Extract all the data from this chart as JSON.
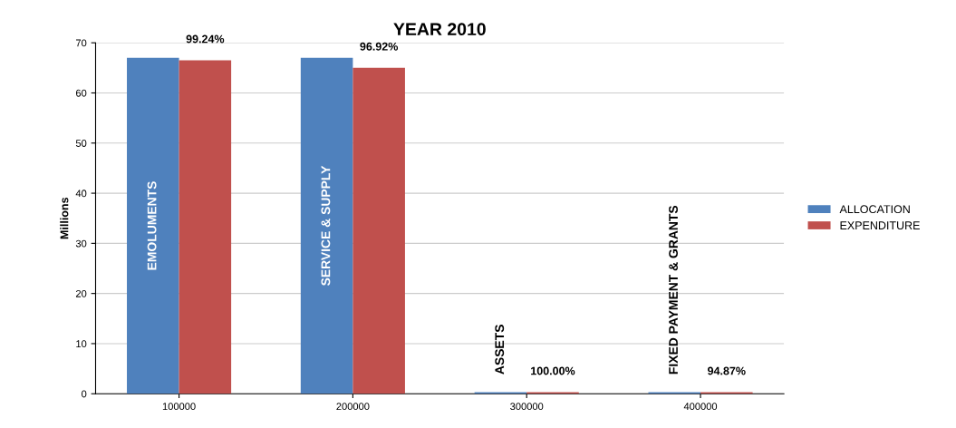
{
  "chart_data": {
    "type": "bar",
    "title": "YEAR 2010",
    "ylabel": "Millions",
    "categories": [
      "100000",
      "200000",
      "300000",
      "400000"
    ],
    "series": [
      {
        "name": "ALLOCATION",
        "color": "#4f81bd",
        "values": [
          67.0,
          67.0,
          0.3,
          0.3
        ]
      },
      {
        "name": "EXPENDITURE",
        "color": "#c0504d",
        "values": [
          66.5,
          65.0,
          0.3,
          0.3
        ]
      }
    ],
    "annotations": [
      "EMOLUMENTS",
      "SERVICE & SUPPLY",
      "ASSETS",
      "FIXED PAYMENT & GRANTS",
      {
        "text": "99.24%",
        "x": "100000",
        "y": 66.5
      },
      {
        "text": "96.92%",
        "x": "200000",
        "y": 65.0
      },
      {
        "text": "100.00%",
        "x": "300000",
        "y": 0.3
      },
      {
        "text": "94.87%",
        "x": "400000",
        "y": 0.3
      }
    ],
    "ylim": [
      0,
      70
    ],
    "yticks": [
      0,
      10,
      20,
      30,
      40,
      50,
      60,
      70
    ],
    "grid": "y",
    "legend": "right"
  }
}
